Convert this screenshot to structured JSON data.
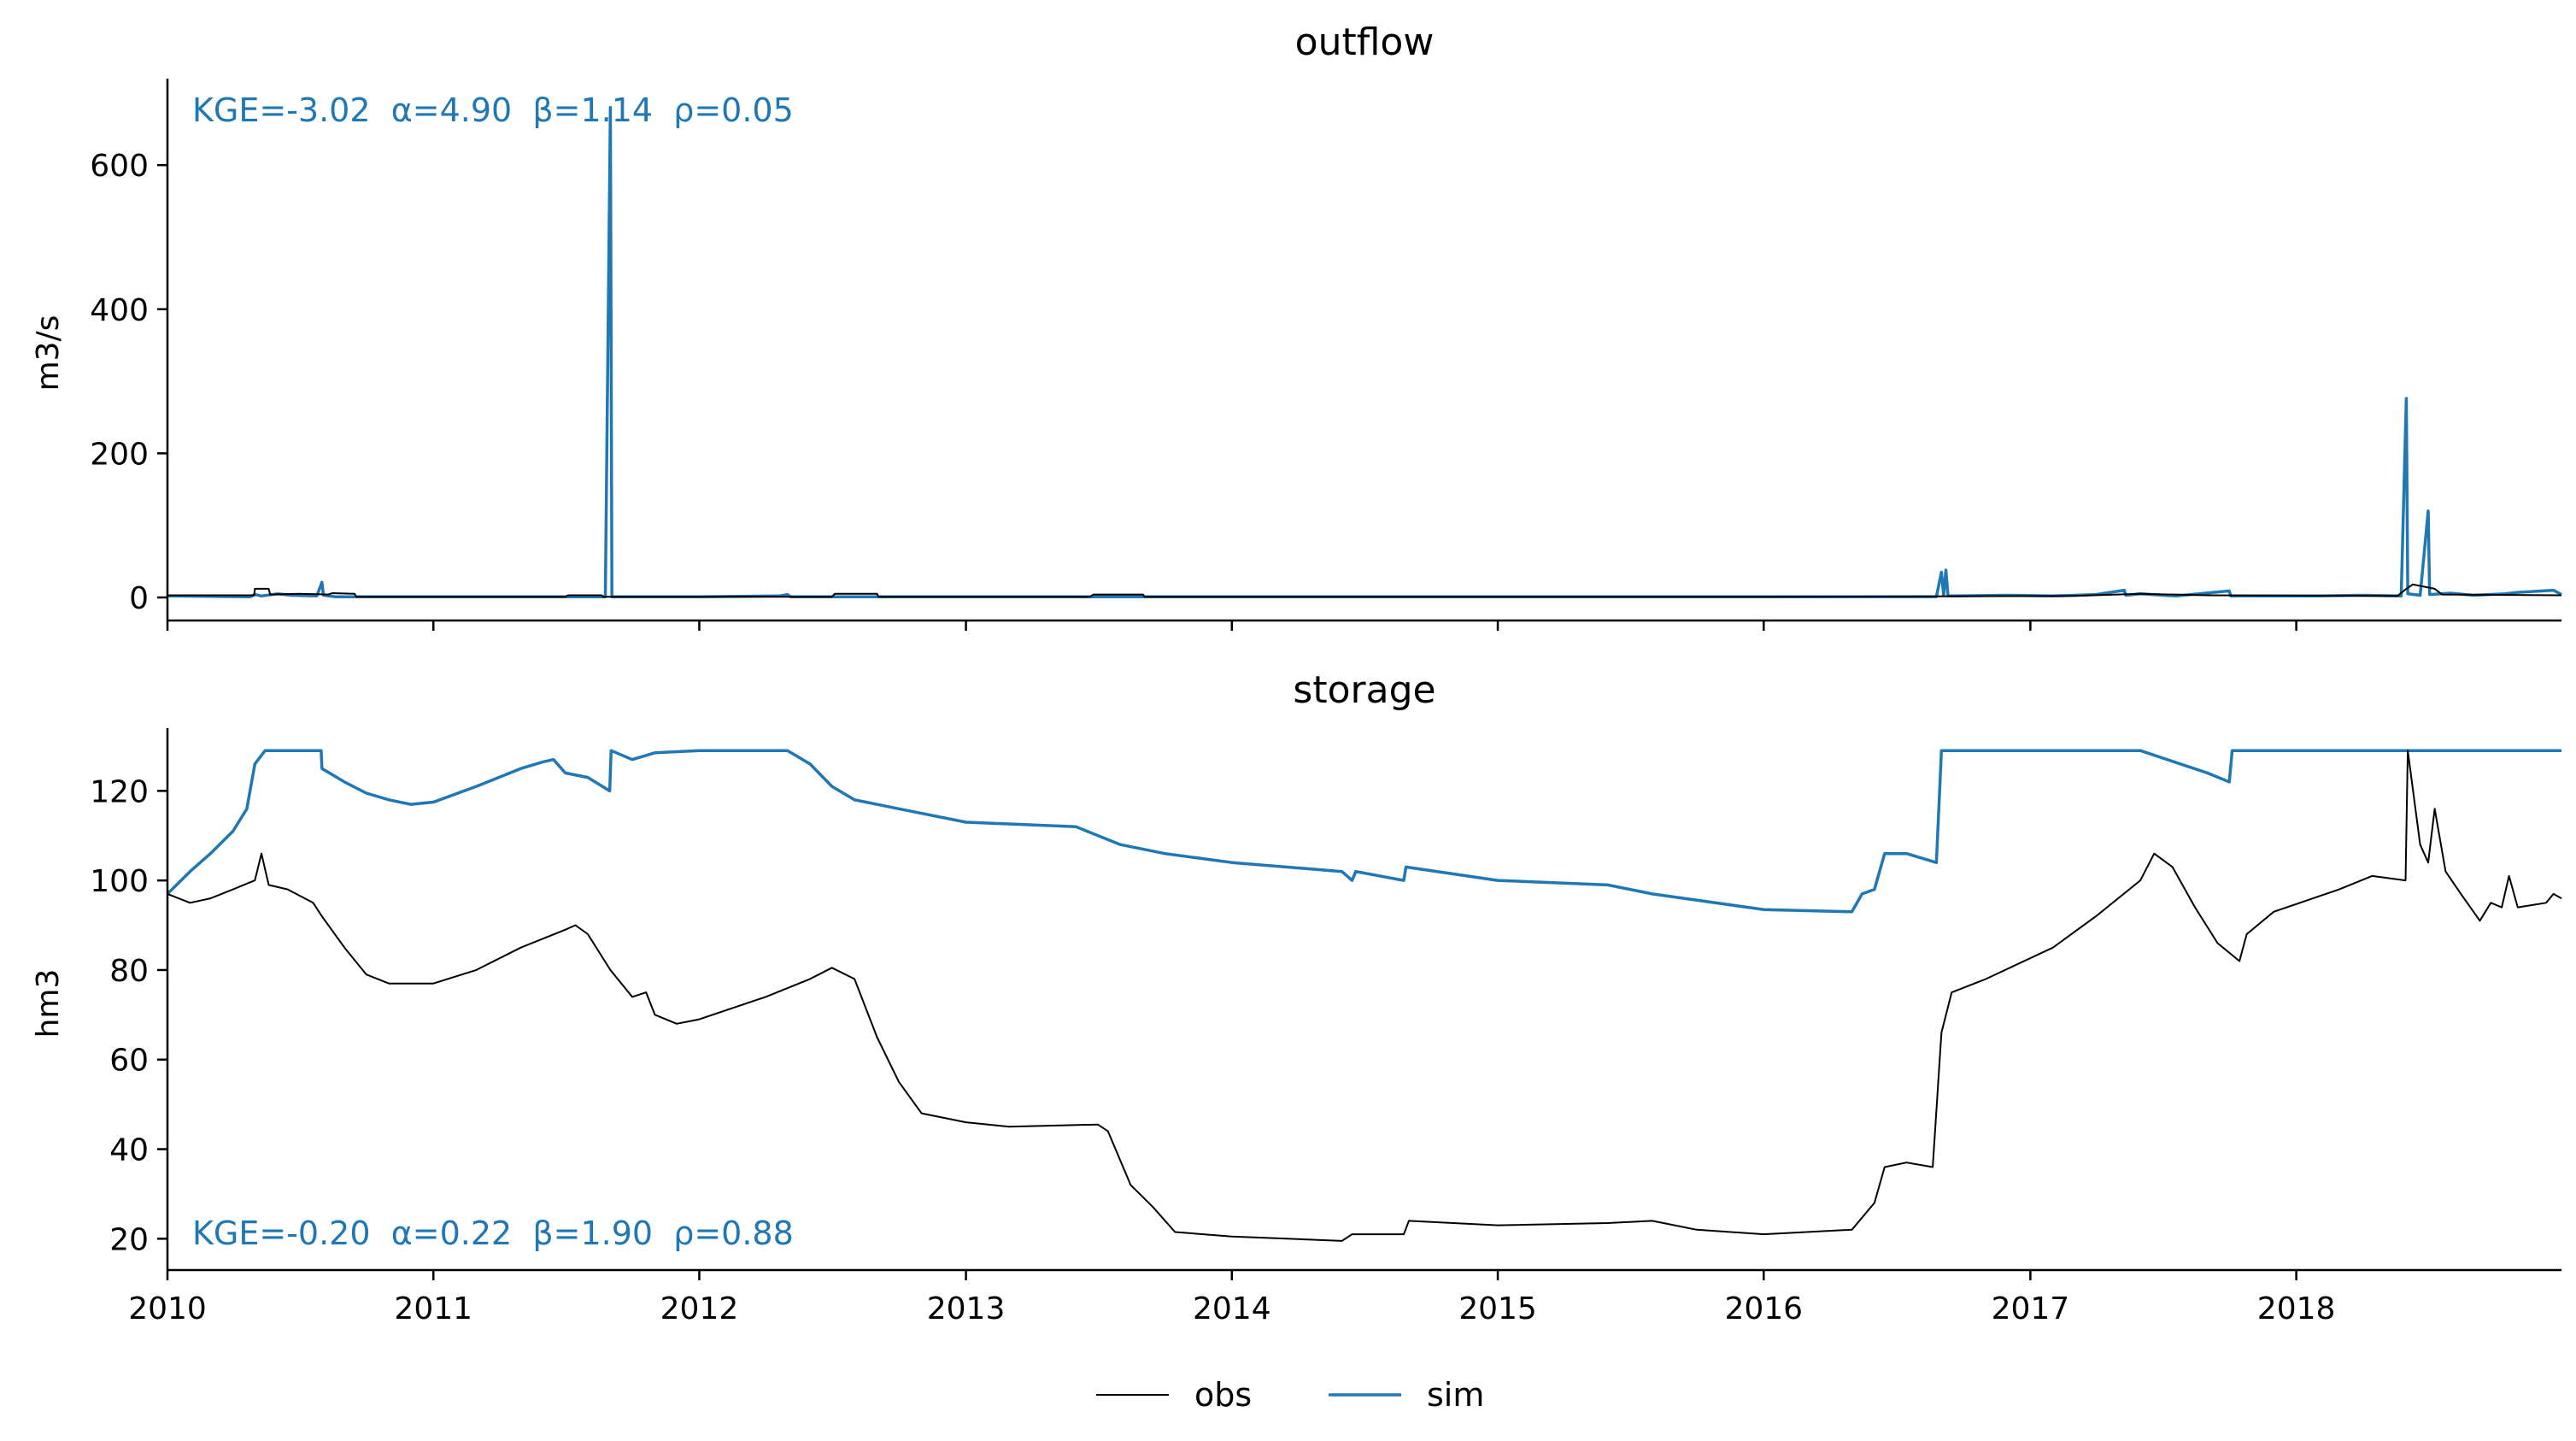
{
  "colors": {
    "obs": "#000000",
    "sim": "#1f77b4",
    "axis": "#000000"
  },
  "legend": {
    "placement": "bottom-center",
    "entries": [
      {
        "key": "obs",
        "label": "obs"
      },
      {
        "key": "sim",
        "label": "sim"
      }
    ]
  },
  "chart_data": [
    {
      "type": "line",
      "title": "outflow",
      "ylabel": "m3/s",
      "xlim": [
        "2010-01-01",
        "2018-12-31"
      ],
      "ylim": [
        -32,
        720
      ],
      "yticks": [
        0,
        200,
        400,
        600
      ],
      "show_xtick_labels": false,
      "metrics": {
        "text": "KGE=-3.02  α=4.90  β=1.14  ρ=0.05",
        "placement": "top-left"
      },
      "series": [
        {
          "key": "sim",
          "points": [
            [
              "2010-01-01",
              2
            ],
            [
              "2010-04-25",
              1
            ],
            [
              "2010-05-01",
              4
            ],
            [
              "2010-05-10",
              2
            ],
            [
              "2010-06-01",
              5
            ],
            [
              "2010-06-20",
              3
            ],
            [
              "2010-07-25",
              2
            ],
            [
              "2010-08-01",
              21
            ],
            [
              "2010-08-03",
              3
            ],
            [
              "2010-08-20",
              1
            ],
            [
              "2011-01-01",
              1
            ],
            [
              "2011-06-01",
              1
            ],
            [
              "2011-08-25",
              1
            ],
            [
              "2011-09-01",
              680
            ],
            [
              "2011-09-03",
              1
            ],
            [
              "2012-01-01",
              1
            ],
            [
              "2012-04-20",
              2
            ],
            [
              "2012-05-01",
              4
            ],
            [
              "2012-05-05",
              1
            ],
            [
              "2013-01-01",
              1
            ],
            [
              "2014-01-01",
              1
            ],
            [
              "2015-01-01",
              1
            ],
            [
              "2016-01-01",
              1
            ],
            [
              "2016-08-25",
              1
            ],
            [
              "2016-09-01",
              35
            ],
            [
              "2016-09-04",
              3
            ],
            [
              "2016-09-07",
              38
            ],
            [
              "2016-09-10",
              2
            ],
            [
              "2016-12-01",
              3
            ],
            [
              "2017-02-01",
              2
            ],
            [
              "2017-04-01",
              4
            ],
            [
              "2017-05-10",
              10
            ],
            [
              "2017-05-12",
              3
            ],
            [
              "2017-06-01",
              5
            ],
            [
              "2017-07-20",
              2
            ],
            [
              "2017-10-01",
              9
            ],
            [
              "2017-10-03",
              2
            ],
            [
              "2018-02-01",
              2
            ],
            [
              "2018-04-01",
              3
            ],
            [
              "2018-05-25",
              2
            ],
            [
              "2018-06-01",
              276
            ],
            [
              "2018-06-03",
              5
            ],
            [
              "2018-06-20",
              3
            ],
            [
              "2018-07-01",
              120
            ],
            [
              "2018-07-03",
              4
            ],
            [
              "2018-08-01",
              6
            ],
            [
              "2018-09-01",
              3
            ],
            [
              "2018-10-15",
              5
            ],
            [
              "2018-11-01",
              7
            ],
            [
              "2018-12-20",
              10
            ],
            [
              "2018-12-31",
              4
            ]
          ]
        },
        {
          "key": "obs",
          "points": [
            [
              "2010-01-01",
              3
            ],
            [
              "2010-04-30",
              3
            ],
            [
              "2010-05-01",
              12
            ],
            [
              "2010-05-20",
              12
            ],
            [
              "2010-05-22",
              4
            ],
            [
              "2010-07-01",
              5
            ],
            [
              "2010-08-10",
              4
            ],
            [
              "2010-08-15",
              6
            ],
            [
              "2010-09-15",
              5
            ],
            [
              "2010-09-17",
              1
            ],
            [
              "2011-07-01",
              1
            ],
            [
              "2011-07-05",
              3
            ],
            [
              "2011-08-20",
              3
            ],
            [
              "2011-08-22",
              1
            ],
            [
              "2012-07-01",
              1
            ],
            [
              "2012-07-05",
              5
            ],
            [
              "2012-09-01",
              5
            ],
            [
              "2012-09-03",
              1
            ],
            [
              "2013-06-20",
              1
            ],
            [
              "2013-06-25",
              4
            ],
            [
              "2013-09-01",
              4
            ],
            [
              "2013-09-03",
              1
            ],
            [
              "2016-01-01",
              1
            ],
            [
              "2017-03-01",
              2
            ],
            [
              "2017-06-01",
              5
            ],
            [
              "2017-09-01",
              3
            ],
            [
              "2018-05-20",
              2
            ],
            [
              "2018-06-01",
              12
            ],
            [
              "2018-06-10",
              18
            ],
            [
              "2018-07-10",
              12
            ],
            [
              "2018-07-20",
              4
            ],
            [
              "2018-12-31",
              3
            ]
          ]
        }
      ]
    },
    {
      "type": "line",
      "title": "storage",
      "ylabel": "hm3",
      "xlim": [
        "2010-01-01",
        "2018-12-31"
      ],
      "ylim": [
        13,
        134
      ],
      "yticks": [
        20,
        40,
        60,
        80,
        100,
        120
      ],
      "xticks": [
        "2010",
        "2011",
        "2012",
        "2013",
        "2014",
        "2015",
        "2016",
        "2017",
        "2018"
      ],
      "metrics": {
        "text": "KGE=-0.20  α=0.22  β=1.90  ρ=0.88",
        "placement": "bottom-left"
      },
      "series": [
        {
          "key": "sim",
          "points": [
            [
              "2010-01-01",
              97
            ],
            [
              "2010-02-01",
              102
            ],
            [
              "2010-03-01",
              106
            ],
            [
              "2010-04-01",
              111
            ],
            [
              "2010-04-20",
              116
            ],
            [
              "2010-05-01",
              126
            ],
            [
              "2010-05-15",
              129
            ],
            [
              "2010-07-31",
              129
            ],
            [
              "2010-08-01",
              125
            ],
            [
              "2010-09-01",
              122
            ],
            [
              "2010-10-01",
              119.5
            ],
            [
              "2010-11-01",
              118
            ],
            [
              "2010-12-01",
              117
            ],
            [
              "2011-01-01",
              117.5
            ],
            [
              "2011-03-01",
              121
            ],
            [
              "2011-05-01",
              125
            ],
            [
              "2011-06-01",
              126.5
            ],
            [
              "2011-06-15",
              127
            ],
            [
              "2011-07-01",
              124
            ],
            [
              "2011-08-01",
              123
            ],
            [
              "2011-08-31",
              120
            ],
            [
              "2011-09-02",
              129
            ],
            [
              "2011-10-01",
              127
            ],
            [
              "2011-11-01",
              128.5
            ],
            [
              "2012-01-01",
              129
            ],
            [
              "2012-05-01",
              129
            ],
            [
              "2012-06-01",
              126
            ],
            [
              "2012-07-01",
              121
            ],
            [
              "2012-08-01",
              118
            ],
            [
              "2012-10-01",
              116
            ],
            [
              "2013-01-01",
              113
            ],
            [
              "2013-06-01",
              112
            ],
            [
              "2013-08-01",
              108
            ],
            [
              "2013-10-01",
              106
            ],
            [
              "2014-01-01",
              104
            ],
            [
              "2014-06-01",
              102
            ],
            [
              "2014-06-15",
              100
            ],
            [
              "2014-06-20",
              102
            ],
            [
              "2014-08-25",
              100
            ],
            [
              "2014-08-28",
              103
            ],
            [
              "2015-01-01",
              100
            ],
            [
              "2015-06-01",
              99
            ],
            [
              "2015-08-01",
              97
            ],
            [
              "2016-01-01",
              93.5
            ],
            [
              "2016-05-01",
              93
            ],
            [
              "2016-05-15",
              97
            ],
            [
              "2016-06-01",
              98
            ],
            [
              "2016-06-15",
              106
            ],
            [
              "2016-07-15",
              106
            ],
            [
              "2016-08-25",
              104
            ],
            [
              "2016-09-01",
              129
            ],
            [
              "2017-06-01",
              129
            ],
            [
              "2017-09-01",
              124
            ],
            [
              "2017-10-01",
              122
            ],
            [
              "2017-10-05",
              129
            ],
            [
              "2018-12-31",
              129
            ]
          ]
        },
        {
          "key": "obs",
          "points": [
            [
              "2010-01-01",
              97
            ],
            [
              "2010-02-01",
              95
            ],
            [
              "2010-03-01",
              96
            ],
            [
              "2010-04-01",
              98
            ],
            [
              "2010-05-01",
              100
            ],
            [
              "2010-05-10",
              106
            ],
            [
              "2010-05-20",
              99
            ],
            [
              "2010-06-15",
              98
            ],
            [
              "2010-07-20",
              95
            ],
            [
              "2010-08-01",
              92
            ],
            [
              "2010-09-01",
              85
            ],
            [
              "2010-10-01",
              79
            ],
            [
              "2010-11-01",
              77
            ],
            [
              "2011-01-01",
              77
            ],
            [
              "2011-03-01",
              80
            ],
            [
              "2011-05-01",
              85
            ],
            [
              "2011-07-01",
              89
            ],
            [
              "2011-07-15",
              90
            ],
            [
              "2011-08-01",
              88
            ],
            [
              "2011-09-01",
              80
            ],
            [
              "2011-10-01",
              74
            ],
            [
              "2011-10-20",
              75
            ],
            [
              "2011-11-01",
              70
            ],
            [
              "2011-12-01",
              68
            ],
            [
              "2012-01-01",
              69
            ],
            [
              "2012-04-01",
              74
            ],
            [
              "2012-06-01",
              78
            ],
            [
              "2012-07-01",
              80.5
            ],
            [
              "2012-08-01",
              78
            ],
            [
              "2012-09-01",
              65
            ],
            [
              "2012-10-01",
              55
            ],
            [
              "2012-11-01",
              48
            ],
            [
              "2013-01-01",
              46
            ],
            [
              "2013-03-01",
              45
            ],
            [
              "2013-07-01",
              45.5
            ],
            [
              "2013-07-15",
              44
            ],
            [
              "2013-08-15",
              32
            ],
            [
              "2013-09-15",
              27
            ],
            [
              "2013-10-15",
              21.5
            ],
            [
              "2014-01-01",
              20.5
            ],
            [
              "2014-06-01",
              19.5
            ],
            [
              "2014-06-15",
              21
            ],
            [
              "2014-08-25",
              21
            ],
            [
              "2014-09-01",
              24
            ],
            [
              "2015-01-01",
              23
            ],
            [
              "2015-06-01",
              23.5
            ],
            [
              "2015-08-01",
              24
            ],
            [
              "2015-10-01",
              22
            ],
            [
              "2016-01-01",
              21
            ],
            [
              "2016-05-01",
              22
            ],
            [
              "2016-06-01",
              28
            ],
            [
              "2016-06-15",
              36
            ],
            [
              "2016-07-15",
              37
            ],
            [
              "2016-08-20",
              36
            ],
            [
              "2016-09-01",
              66
            ],
            [
              "2016-09-15",
              75
            ],
            [
              "2016-11-01",
              78
            ],
            [
              "2017-02-01",
              85
            ],
            [
              "2017-04-01",
              92
            ],
            [
              "2017-06-01",
              100
            ],
            [
              "2017-06-20",
              106
            ],
            [
              "2017-07-15",
              103
            ],
            [
              "2017-08-15",
              94
            ],
            [
              "2017-09-15",
              86
            ],
            [
              "2017-10-15",
              82
            ],
            [
              "2017-10-25",
              88
            ],
            [
              "2017-12-01",
              93
            ],
            [
              "2018-03-01",
              98
            ],
            [
              "2018-04-15",
              101
            ],
            [
              "2018-05-31",
              100
            ],
            [
              "2018-06-03",
              129
            ],
            [
              "2018-06-20",
              108
            ],
            [
              "2018-07-01",
              104
            ],
            [
              "2018-07-10",
              116
            ],
            [
              "2018-07-25",
              102
            ],
            [
              "2018-08-15",
              97
            ],
            [
              "2018-09-10",
              91
            ],
            [
              "2018-09-25",
              95
            ],
            [
              "2018-10-10",
              94
            ],
            [
              "2018-10-20",
              101
            ],
            [
              "2018-11-01",
              94
            ],
            [
              "2018-12-10",
              95
            ],
            [
              "2018-12-20",
              97
            ],
            [
              "2018-12-31",
              96
            ]
          ]
        }
      ]
    }
  ]
}
